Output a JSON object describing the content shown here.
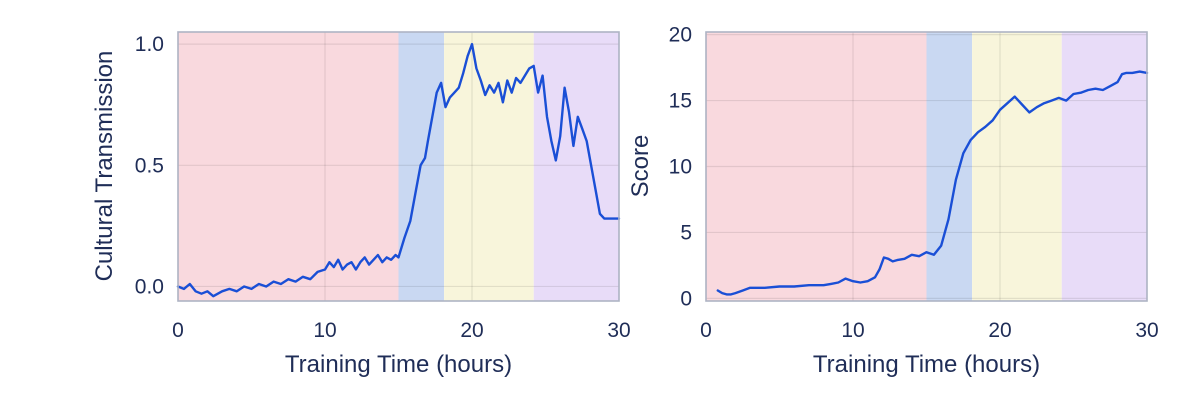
{
  "chart_data": [
    {
      "type": "line",
      "xlabel": "Training Time (hours)",
      "ylabel": "Cultural Transmission",
      "xlim": [
        0,
        30
      ],
      "ylim": [
        -0.06,
        1.05
      ],
      "xticks": [
        0,
        10,
        20,
        30
      ],
      "xtick_labels": [
        "0",
        "10",
        "20",
        "30"
      ],
      "yticks": [
        0.0,
        0.5,
        1.0
      ],
      "ytick_labels": [
        "0.0",
        "0.5",
        "1.0"
      ],
      "grid": true,
      "line_color": "#1a4fd6",
      "phases": [
        {
          "start": 0,
          "end": 15.0,
          "color": "#f9d9de"
        },
        {
          "start": 15.0,
          "end": 18.1,
          "color": "#c9d8f2"
        },
        {
          "start": 18.1,
          "end": 24.2,
          "color": "#f8f5db"
        },
        {
          "start": 24.2,
          "end": 30,
          "color": "#e8dcf8"
        }
      ],
      "x": [
        0,
        0.4,
        0.8,
        1.2,
        1.6,
        2.0,
        2.4,
        3.0,
        3.5,
        4.0,
        4.5,
        5.0,
        5.5,
        6.0,
        6.5,
        7.0,
        7.5,
        8.0,
        8.5,
        9.0,
        9.5,
        10.0,
        10.3,
        10.6,
        10.9,
        11.2,
        11.5,
        11.8,
        12.1,
        12.4,
        12.7,
        13.0,
        13.3,
        13.6,
        13.9,
        14.2,
        14.5,
        14.8,
        15.0,
        15.4,
        15.8,
        16.2,
        16.5,
        16.8,
        17.0,
        17.3,
        17.6,
        17.9,
        18.2,
        18.5,
        18.8,
        19.1,
        19.4,
        19.7,
        20.0,
        20.3,
        20.6,
        20.9,
        21.2,
        21.5,
        21.8,
        22.1,
        22.4,
        22.7,
        23.0,
        23.3,
        23.6,
        23.9,
        24.2,
        24.5,
        24.8,
        25.1,
        25.4,
        25.7,
        26.0,
        26.3,
        26.6,
        26.9,
        27.2,
        27.5,
        27.8,
        28.1,
        28.4,
        28.7,
        29.0,
        29.3,
        29.6,
        30.0
      ],
      "y": [
        0.0,
        -0.01,
        0.01,
        -0.02,
        -0.03,
        -0.02,
        -0.04,
        -0.02,
        -0.01,
        -0.02,
        0.0,
        -0.01,
        0.01,
        0.0,
        0.02,
        0.01,
        0.03,
        0.02,
        0.04,
        0.03,
        0.06,
        0.07,
        0.1,
        0.08,
        0.11,
        0.07,
        0.09,
        0.1,
        0.07,
        0.1,
        0.12,
        0.09,
        0.11,
        0.13,
        0.1,
        0.12,
        0.11,
        0.13,
        0.12,
        0.2,
        0.27,
        0.4,
        0.5,
        0.53,
        0.6,
        0.7,
        0.8,
        0.84,
        0.74,
        0.78,
        0.8,
        0.82,
        0.88,
        0.95,
        1.0,
        0.9,
        0.85,
        0.79,
        0.83,
        0.8,
        0.84,
        0.76,
        0.85,
        0.8,
        0.86,
        0.84,
        0.87,
        0.9,
        0.91,
        0.8,
        0.87,
        0.7,
        0.6,
        0.52,
        0.62,
        0.82,
        0.72,
        0.58,
        0.7,
        0.65,
        0.6,
        0.5,
        0.4,
        0.3,
        0.28,
        0.28,
        0.28,
        0.28
      ]
    },
    {
      "type": "line",
      "xlabel": "Training Time (hours)",
      "ylabel": "Score",
      "xlim": [
        0,
        30
      ],
      "ylim": [
        -0.2,
        20.2
      ],
      "xticks": [
        0,
        10,
        20,
        30
      ],
      "xtick_labels": [
        "0",
        "10",
        "20",
        "30"
      ],
      "yticks": [
        0,
        5,
        10,
        15,
        20
      ],
      "ytick_labels": [
        "0",
        "5",
        "10",
        "15",
        "20"
      ],
      "grid": true,
      "line_color": "#1a4fd6",
      "phases": [
        {
          "start": 0,
          "end": 15.0,
          "color": "#f9d9de"
        },
        {
          "start": 15.0,
          "end": 18.1,
          "color": "#c9d8f2"
        },
        {
          "start": 18.1,
          "end": 24.2,
          "color": "#f8f5db"
        },
        {
          "start": 24.2,
          "end": 30,
          "color": "#e8dcf8"
        }
      ],
      "x": [
        0.8,
        1.1,
        1.4,
        1.7,
        2.0,
        2.5,
        3.0,
        3.5,
        4.0,
        5.0,
        6.0,
        7.0,
        8.0,
        8.5,
        9.0,
        9.5,
        10.0,
        10.5,
        11.0,
        11.5,
        11.8,
        12.1,
        12.4,
        12.7,
        13.0,
        13.5,
        14.0,
        14.5,
        15.0,
        15.5,
        16.0,
        16.5,
        17.0,
        17.5,
        18.0,
        18.5,
        19.0,
        19.5,
        20.0,
        20.5,
        21.0,
        21.5,
        22.0,
        22.5,
        23.0,
        23.5,
        24.0,
        24.5,
        25.0,
        25.5,
        26.0,
        26.5,
        27.0,
        27.5,
        28.0,
        28.3,
        28.6,
        29.0,
        29.5,
        30.0
      ],
      "y": [
        0.6,
        0.4,
        0.3,
        0.3,
        0.4,
        0.6,
        0.8,
        0.8,
        0.8,
        0.9,
        0.9,
        1.0,
        1.0,
        1.1,
        1.2,
        1.5,
        1.3,
        1.2,
        1.3,
        1.6,
        2.2,
        3.1,
        3.0,
        2.8,
        2.9,
        3.0,
        3.3,
        3.2,
        3.5,
        3.3,
        4.0,
        6.0,
        9.0,
        11.0,
        12.0,
        12.6,
        13.0,
        13.5,
        14.3,
        14.8,
        15.3,
        14.7,
        14.1,
        14.5,
        14.8,
        15.0,
        15.2,
        15.0,
        15.5,
        15.6,
        15.8,
        15.9,
        15.8,
        16.1,
        16.4,
        17.0,
        17.1,
        17.1,
        17.2,
        17.1
      ]
    }
  ]
}
